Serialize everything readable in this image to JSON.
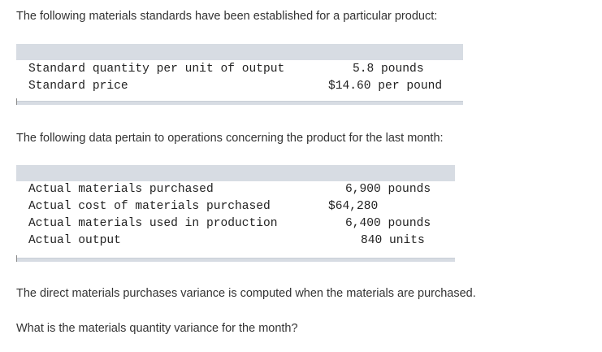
{
  "intro_text": "The following materials standards have been established for a particular product:",
  "standards_table": {
    "rows": [
      {
        "label": "Standard quantity per unit of output",
        "value": "5.8 pounds"
      },
      {
        "label": "Standard price",
        "value": "$14.60 per pound"
      }
    ]
  },
  "data_intro_text": "The following data pertain to operations concerning the product for the last month:",
  "actuals_table": {
    "rows": [
      {
        "label": "Actual materials purchased",
        "value": "6,900 pounds"
      },
      {
        "label": "Actual cost of materials purchased",
        "value": "$64,280"
      },
      {
        "label": "Actual materials used in production",
        "value": "6,400 pounds"
      },
      {
        "label": "Actual output",
        "value": "840 units"
      }
    ]
  },
  "note_text": "The direct materials purchases variance is computed when the materials are purchased.",
  "question_text": "What is the materials quantity variance for the month?"
}
